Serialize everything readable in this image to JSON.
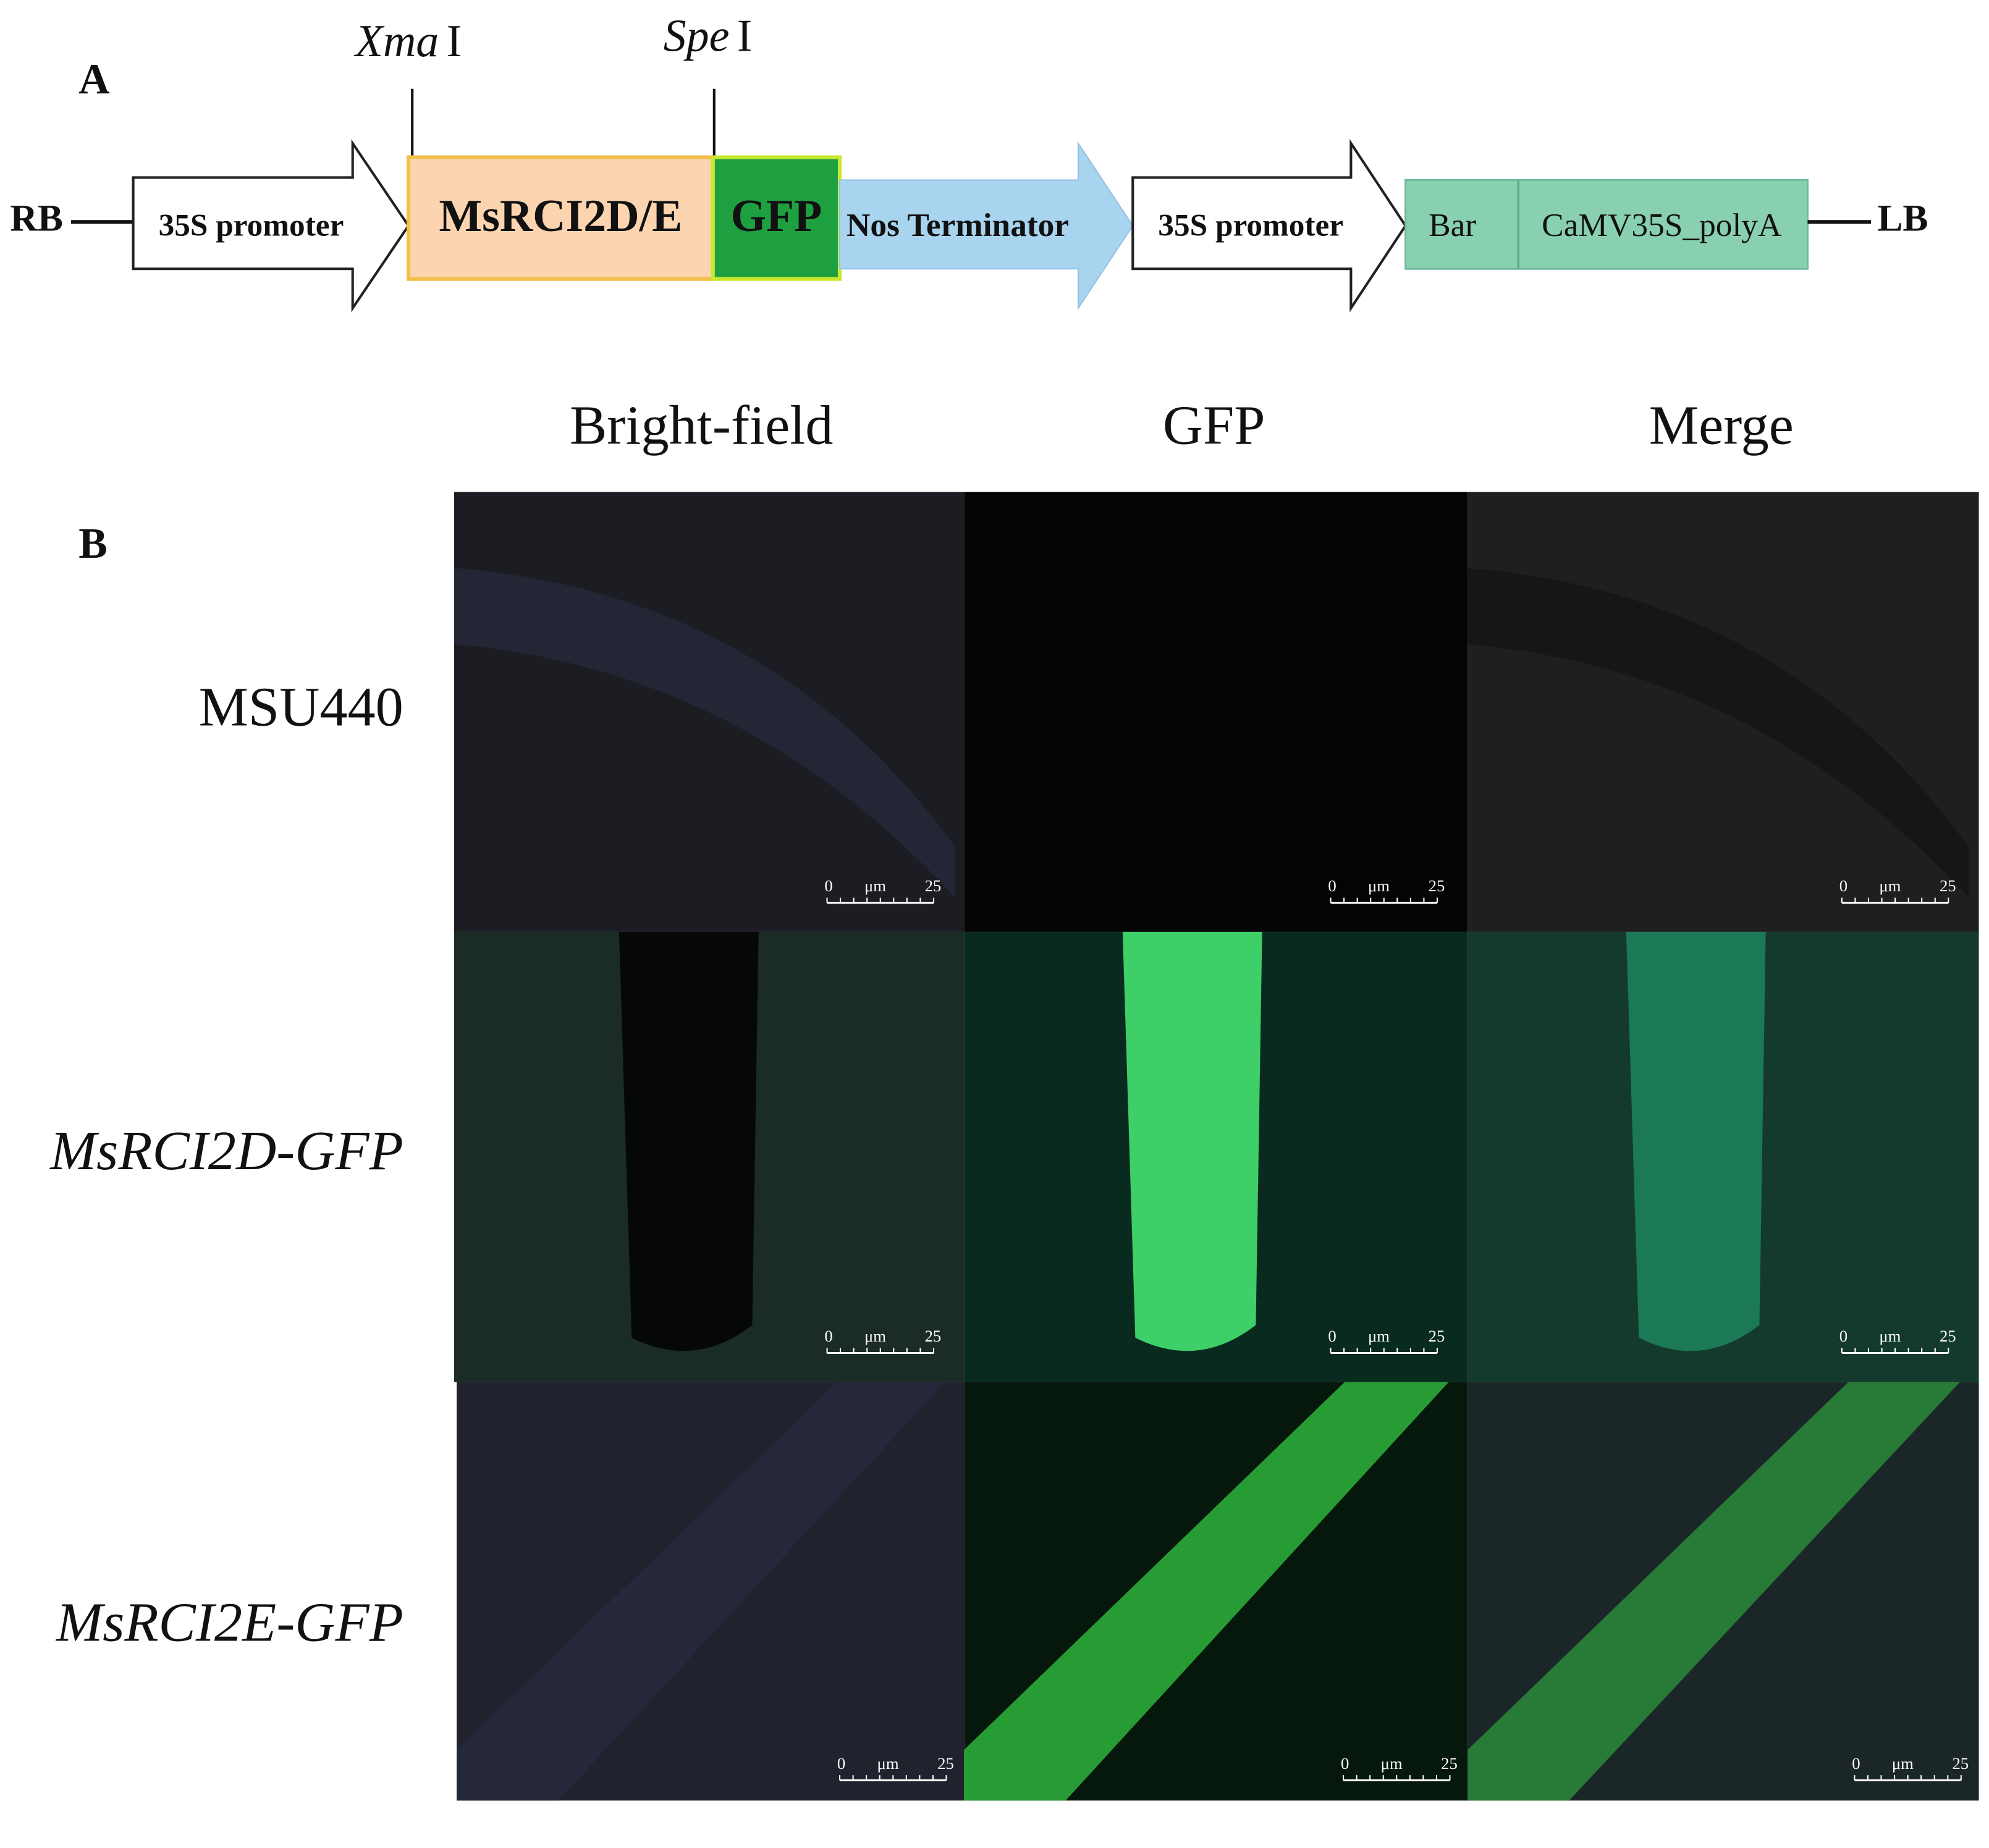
{
  "panel_a": {
    "label": "A",
    "sites": [
      {
        "name": "Xma",
        "suffix": "I"
      },
      {
        "name": "Spe",
        "suffix": "I"
      }
    ],
    "left_border": "RB",
    "right_border": "LB",
    "elements": [
      "35S promoter",
      "MsRCI2D/E",
      "GFP",
      "Nos Terminator",
      "35S promoter",
      "Bar",
      "CaMV35S_polyA"
    ]
  },
  "panel_b": {
    "label": "B",
    "columns": [
      "Bright-field",
      "GFP",
      "Merge"
    ],
    "rows": [
      {
        "label": "MSU440",
        "italic": false
      },
      {
        "label": "MsRCI2D-GFP",
        "italic": true
      },
      {
        "label": "MsRCI2E-GFP",
        "italic": true
      }
    ],
    "scale_bar": {
      "start": "0",
      "unit": "μm",
      "end": "25"
    }
  }
}
